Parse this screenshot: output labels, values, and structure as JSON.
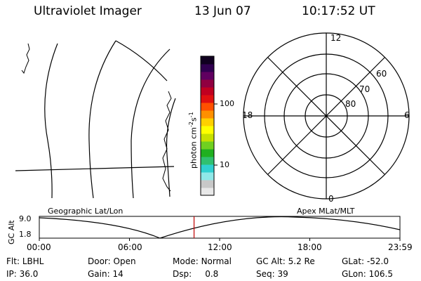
{
  "header": {
    "instrument": "Ultraviolet Imager",
    "date": "13 Jun 07",
    "time": "10:17:52 UT"
  },
  "colorbar": {
    "unit_label": "photon cm-2s-1",
    "unit_main": "photon cm",
    "unit_exp1": "-2",
    "unit_s": "s",
    "unit_exp2": "-1",
    "ticks": [
      "100",
      "10"
    ],
    "colors": [
      "#e8e8e8",
      "#c8c8c8",
      "#8fe8e8",
      "#30d0d0",
      "#30c070",
      "#20b020",
      "#70d020",
      "#c8e000",
      "#ffff00",
      "#ffd000",
      "#ff9000",
      "#ff5000",
      "#e01010",
      "#c00020",
      "#900040",
      "#600060",
      "#300050",
      "#100020"
    ]
  },
  "polar_plot": {
    "mlt_labels": {
      "top": "12",
      "left": "18",
      "right": "6",
      "bottom": "0"
    },
    "lat_labels": [
      "60",
      "70",
      "80"
    ]
  },
  "timeline": {
    "axis_label": "GC Alt",
    "y_ticks": [
      "9.0",
      "1.8"
    ],
    "left_title": "Geographic Lat/Lon",
    "right_title": "Apex MLat/MLT",
    "x_ticks": [
      "00:00",
      "06:00",
      "12:00",
      "18:00",
      "23:59"
    ],
    "current_time_fraction": 0.4291
  },
  "status": {
    "row1": [
      {
        "label": "Flt:",
        "value": "LBHL"
      },
      {
        "label": "Door:",
        "value": "Open"
      },
      {
        "label": "Mode:",
        "value": "Normal"
      },
      {
        "label": "GC Alt:",
        "value": "5.2 Re"
      },
      {
        "label": "GLat:",
        "value": "-52.0"
      }
    ],
    "row2": [
      {
        "label": "IP:",
        "value": "36.0"
      },
      {
        "label": "Gain:",
        "value": "14"
      },
      {
        "label": "Dsp:",
        "value": "0.8"
      },
      {
        "label": "Seq:",
        "value": "39"
      },
      {
        "label": "GLon:",
        "value": "106.5"
      }
    ]
  }
}
